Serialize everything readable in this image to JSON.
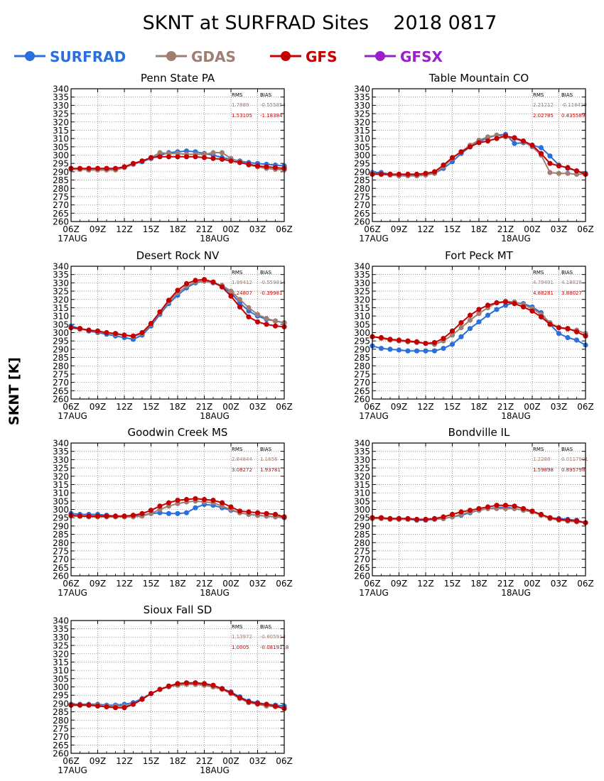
{
  "title": "SKNT at SURFRAD Sites    2018 0817",
  "ylabel": "SKNT [K]",
  "legend": [
    {
      "name": "SURFRAD",
      "color": "#2a6fdc"
    },
    {
      "name": "GDAS",
      "color": "#a07f73"
    },
    {
      "name": "GFS",
      "color": "#c40000"
    },
    {
      "name": "GFSX",
      "color": "#9b1fc9"
    }
  ],
  "stats_header": {
    "rms": "RMS",
    "bias": "BIAS"
  },
  "chart_data": {
    "type": "line",
    "x_ticks": [
      "06Z",
      "09Z",
      "12Z",
      "15Z",
      "18Z",
      "21Z",
      "00Z",
      "03Z",
      "06Z"
    ],
    "date_labels": [
      "17AUG",
      "18AUG"
    ],
    "ylim": [
      260,
      340
    ],
    "y_ticks": [
      260,
      265,
      270,
      275,
      280,
      285,
      290,
      295,
      300,
      305,
      310,
      315,
      320,
      325,
      330,
      335,
      340
    ],
    "grid": true,
    "legend_position": "top",
    "x_values_hours": [
      0,
      1,
      2,
      3,
      4,
      5,
      6,
      7,
      8,
      9,
      10,
      11,
      12,
      13,
      14,
      15,
      16,
      17,
      18,
      19,
      20,
      21,
      22,
      23,
      24
    ],
    "panels": [
      {
        "title": "Penn State PA",
        "stats": {
          "gdas": {
            "rms": "1.7889",
            "bias": "-0.555854"
          },
          "gfs": {
            "rms": "1.53105",
            "bias": "-1.18384"
          }
        },
        "series": [
          {
            "name": "SURFRAD",
            "values": [
              291.5,
              291.5,
              291.5,
              291.5,
              291.5,
              291.5,
              292.5,
              294.5,
              296.0,
              298.0,
              300.0,
              301.5,
              302.0,
              302.5,
              302.0,
              301.0,
              300.0,
              298.5,
              297.5,
              296.5,
              295.5,
              295.0,
              294.5,
              294.0,
              293.5
            ]
          },
          {
            "name": "GDAS",
            "values": [
              291.5,
              291.5,
              291.0,
              291.0,
              291.0,
              291.0,
              292.5,
              294.5,
              296.5,
              298.5,
              301.5,
              301.0,
              301.0,
              300.5,
              300.5,
              300.5,
              301.5,
              301.5,
              298.0,
              296.0,
              294.0,
              293.0,
              292.0,
              291.5,
              291.0
            ]
          },
          {
            "name": "GFS",
            "values": [
              292.0,
              292.0,
              292.0,
              292.0,
              292.0,
              292.0,
              293.0,
              295.0,
              296.5,
              298.5,
              299.0,
              299.0,
              299.0,
              299.0,
              299.0,
              298.5,
              298.0,
              297.5,
              296.5,
              295.5,
              294.5,
              293.5,
              293.0,
              292.5,
              292.0
            ]
          }
        ]
      },
      {
        "title": "Table Mountain CO",
        "stats": {
          "gdas": {
            "rms": "2.21212",
            "bias": "-0.118429"
          },
          "gfs": {
            "rms": "2.02785",
            "bias": "0.435589"
          }
        },
        "series": [
          {
            "name": "SURFRAD",
            "values": [
              289.5,
              289.5,
              288.5,
              288.0,
              288.0,
              288.0,
              288.5,
              289.0,
              292.0,
              296.0,
              301.0,
              305.0,
              308.0,
              310.5,
              312.0,
              312.5,
              307.0,
              307.5,
              306.0,
              304.5,
              299.5,
              294.0,
              292.0,
              290.5,
              289.0
            ]
          },
          {
            "name": "GDAS",
            "values": [
              289.0,
              288.5,
              288.0,
              287.5,
              287.5,
              287.5,
              288.0,
              289.0,
              293.0,
              298.0,
              302.0,
              306.0,
              309.0,
              311.0,
              312.0,
              311.0,
              310.0,
              308.0,
              305.0,
              300.0,
              289.5,
              289.0,
              289.0,
              288.5,
              288.5
            ]
          },
          {
            "name": "GFS",
            "values": [
              288.5,
              288.5,
              288.5,
              288.5,
              288.5,
              288.5,
              289.0,
              290.0,
              294.0,
              298.5,
              302.0,
              305.0,
              307.5,
              308.5,
              310.0,
              311.5,
              310.5,
              308.5,
              306.0,
              301.0,
              295.0,
              293.5,
              292.5,
              290.5,
              288.5
            ]
          }
        ]
      },
      {
        "title": "Desert Rock NV",
        "stats": {
          "gdas": {
            "rms": "1.99412",
            "bias": "-0.559814"
          },
          "gfs": {
            "rms": "2.24807",
            "bias": "-0.39981"
          }
        },
        "series": [
          {
            "name": "SURFRAD",
            "values": [
              304.0,
              302.5,
              301.0,
              300.0,
              299.0,
              298.0,
              297.0,
              296.0,
              298.5,
              304.0,
              311.0,
              317.5,
              322.5,
              327.0,
              330.0,
              331.0,
              330.0,
              328.0,
              324.0,
              318.0,
              313.0,
              310.0,
              308.0,
              307.0,
              306.0
            ]
          },
          {
            "name": "GDAS",
            "values": [
              303.0,
              302.0,
              301.5,
              300.5,
              300.0,
              299.0,
              298.5,
              297.5,
              299.5,
              305.0,
              312.0,
              318.5,
              324.0,
              328.0,
              330.5,
              331.0,
              330.0,
              328.5,
              325.0,
              320.0,
              315.0,
              311.0,
              308.5,
              307.0,
              306.0
            ]
          },
          {
            "name": "GFS",
            "values": [
              303.0,
              302.5,
              301.5,
              301.0,
              300.0,
              299.5,
              298.5,
              298.0,
              300.0,
              305.5,
              312.5,
              319.5,
              325.5,
              329.5,
              331.5,
              332.0,
              330.5,
              327.5,
              322.0,
              315.5,
              309.5,
              306.5,
              305.0,
              304.0,
              303.5
            ]
          }
        ]
      },
      {
        "title": "Fort Peck MT",
        "stats": {
          "gdas": {
            "rms": "4.79491",
            "bias": "4.18828"
          },
          "gfs": {
            "rms": "4.88281",
            "bias": "3.88027"
          }
        },
        "series": [
          {
            "name": "SURFRAD",
            "values": [
              292.0,
              290.5,
              290.0,
              289.5,
              289.0,
              289.0,
              289.0,
              289.0,
              290.5,
              293.0,
              297.5,
              302.5,
              306.5,
              310.5,
              314.0,
              316.5,
              318.0,
              317.5,
              315.5,
              312.0,
              305.0,
              299.5,
              297.0,
              295.5,
              292.5
            ]
          },
          {
            "name": "GDAS",
            "values": [
              297.5,
              296.5,
              295.5,
              295.0,
              294.5,
              294.0,
              293.5,
              293.0,
              295.0,
              298.5,
              303.0,
              307.5,
              311.5,
              315.0,
              318.0,
              319.0,
              318.5,
              317.0,
              314.5,
              311.0,
              306.0,
              303.0,
              302.0,
              301.5,
              299.5
            ]
          },
          {
            "name": "GFS",
            "values": [
              297.5,
              297.0,
              296.0,
              295.5,
              295.0,
              294.5,
              293.5,
              294.0,
              296.5,
              301.0,
              306.0,
              310.5,
              314.0,
              316.5,
              318.0,
              318.5,
              317.5,
              315.5,
              313.0,
              309.5,
              305.0,
              303.0,
              302.5,
              300.5,
              298.0
            ]
          }
        ]
      },
      {
        "title": "Goodwin Creek MS",
        "stats": {
          "gdas": {
            "rms": "2.84844",
            "bias": "1.1656"
          },
          "gfs": {
            "rms": "3.08272",
            "bias": "1.93781"
          }
        },
        "series": [
          {
            "name": "SURFRAD",
            "values": [
              297.5,
              297.0,
              297.0,
              297.0,
              296.5,
              296.0,
              296.0,
              296.0,
              296.5,
              297.5,
              298.0,
              297.5,
              297.5,
              298.0,
              301.0,
              303.0,
              302.5,
              301.0,
              299.5,
              298.0,
              297.0,
              296.5,
              296.0,
              295.5,
              295.0
            ]
          },
          {
            "name": "GDAS",
            "values": [
              296.0,
              296.0,
              295.5,
              295.5,
              295.5,
              295.5,
              295.5,
              295.5,
              296.0,
              297.5,
              300.0,
              302.0,
              303.5,
              304.5,
              305.0,
              304.5,
              304.0,
              302.0,
              300.0,
              298.0,
              297.0,
              296.5,
              296.0,
              295.5,
              295.5
            ]
          },
          {
            "name": "GFS",
            "values": [
              296.5,
              296.0,
              296.0,
              296.0,
              296.0,
              296.0,
              296.0,
              296.5,
              297.5,
              299.5,
              302.0,
              304.0,
              305.5,
              306.0,
              306.5,
              306.0,
              305.5,
              304.0,
              301.5,
              299.0,
              298.5,
              298.0,
              297.5,
              297.0,
              295.5
            ]
          }
        ]
      },
      {
        "title": "Bondville IL",
        "stats": {
          "gdas": {
            "rms": "1.2288",
            "bias": "0.0117901"
          },
          "gfs": {
            "rms": "1.59898",
            "bias": "0.895798"
          }
        },
        "series": [
          {
            "name": "SURFRAD",
            "values": [
              295.0,
              295.0,
              294.5,
              294.5,
              294.0,
              293.5,
              293.5,
              294.0,
              294.5,
              295.5,
              296.5,
              298.0,
              299.5,
              300.5,
              301.0,
              301.5,
              300.5,
              299.5,
              298.5,
              296.5,
              295.0,
              294.5,
              294.0,
              293.5,
              292.0
            ]
          },
          {
            "name": "GDAS",
            "values": [
              294.5,
              294.5,
              294.0,
              294.0,
              294.0,
              294.0,
              294.0,
              294.0,
              294.5,
              295.5,
              297.0,
              298.5,
              299.5,
              300.5,
              300.5,
              300.5,
              300.5,
              299.5,
              298.5,
              296.5,
              294.5,
              293.5,
              293.0,
              292.5,
              292.0
            ]
          },
          {
            "name": "GFS",
            "values": [
              295.0,
              295.0,
              294.5,
              294.5,
              294.5,
              294.0,
              294.0,
              294.5,
              295.5,
              297.0,
              298.5,
              299.5,
              300.5,
              301.5,
              302.5,
              302.5,
              302.0,
              300.5,
              299.0,
              297.0,
              295.0,
              294.0,
              293.5,
              293.0,
              292.0
            ]
          }
        ]
      },
      {
        "title": "Sioux Fall SD",
        "stats": {
          "gdas": {
            "rms": "1.13972",
            "bias": "-0.805913"
          },
          "gfs": {
            "rms": "1.0005",
            "bias": "-0.0819118"
          }
        },
        "series": [
          {
            "name": "SURFRAD",
            "values": [
              289.5,
              289.5,
              289.5,
              289.5,
              289.0,
              289.0,
              289.5,
              290.5,
              293.0,
              296.0,
              298.5,
              300.5,
              301.5,
              302.0,
              302.0,
              301.5,
              300.5,
              299.0,
              297.0,
              294.0,
              291.5,
              290.5,
              289.5,
              289.0,
              288.5
            ]
          },
          {
            "name": "GDAS",
            "values": [
              289.0,
              289.0,
              289.0,
              289.0,
              288.5,
              288.5,
              288.5,
              289.5,
              292.5,
              296.0,
              298.5,
              300.0,
              301.0,
              301.5,
              301.5,
              301.0,
              300.0,
              298.5,
              296.0,
              293.0,
              290.5,
              289.5,
              288.5,
              288.0,
              287.0
            ]
          },
          {
            "name": "GFS",
            "values": [
              289.0,
              289.0,
              289.0,
              288.5,
              288.0,
              287.5,
              287.5,
              289.5,
              292.5,
              296.0,
              298.5,
              300.5,
              302.0,
              302.5,
              302.5,
              302.0,
              301.0,
              299.0,
              296.5,
              293.5,
              291.0,
              290.0,
              289.5,
              288.5,
              287.0
            ]
          }
        ]
      }
    ]
  }
}
